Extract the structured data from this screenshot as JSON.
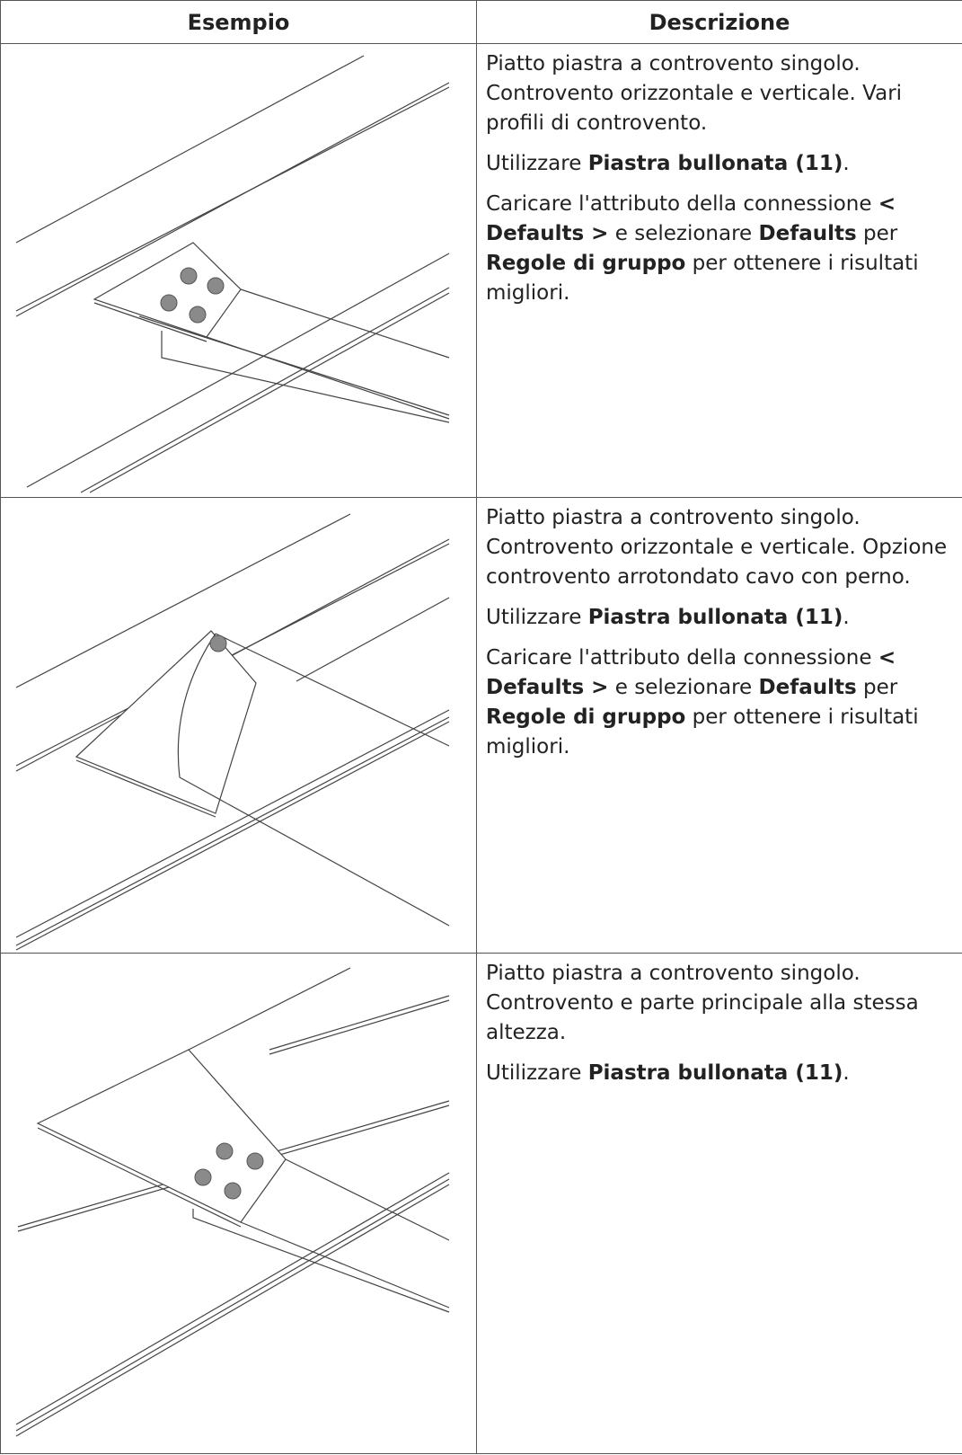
{
  "table": {
    "headers": [
      "Esempio",
      "Descrizione"
    ],
    "rows": [
      {
        "description": [
          [
            {
              "text": "Piatto piastra a controvento singolo. Controvento orizzontale e verticale. Vari profili di controvento."
            }
          ],
          [
            {
              "text": "Utilizzare "
            },
            {
              "text": "Piastra bullonata (11)",
              "bold": true
            },
            {
              "text": "."
            }
          ],
          [
            {
              "text": "Caricare l'attributo della connessione "
            },
            {
              "text": "< Defaults >",
              "bold": true
            },
            {
              "text": " e selezionare "
            },
            {
              "text": "Defaults",
              "bold": true
            },
            {
              "text": " per "
            },
            {
              "text": "Regole di gruppo",
              "bold": true
            },
            {
              "text": " per ottenere i risultati migliori."
            }
          ]
        ]
      },
      {
        "description": [
          [
            {
              "text": "Piatto piastra a controvento singolo. Controvento orizzontale e verticale. Opzione controvento arrotondato cavo con perno."
            }
          ],
          [
            {
              "text": "Utilizzare "
            },
            {
              "text": "Piastra bullonata (11)",
              "bold": true
            },
            {
              "text": "."
            }
          ],
          [
            {
              "text": "Caricare l'attributo della connessione "
            },
            {
              "text": "< Defaults >",
              "bold": true
            },
            {
              "text": " e selezionare "
            },
            {
              "text": "Defaults",
              "bold": true
            },
            {
              "text": " per "
            },
            {
              "text": "Regole di gruppo",
              "bold": true
            },
            {
              "text": " per ottenere i risultati migliori."
            }
          ]
        ]
      },
      {
        "description": [
          [
            {
              "text": "Piatto piastra a controvento singolo. Controvento e parte principale alla stessa altezza."
            }
          ],
          [
            {
              "text": "Utilizzare "
            },
            {
              "text": "Piastra bullonata (11)",
              "bold": true
            },
            {
              "text": "."
            }
          ]
        ]
      }
    ]
  }
}
